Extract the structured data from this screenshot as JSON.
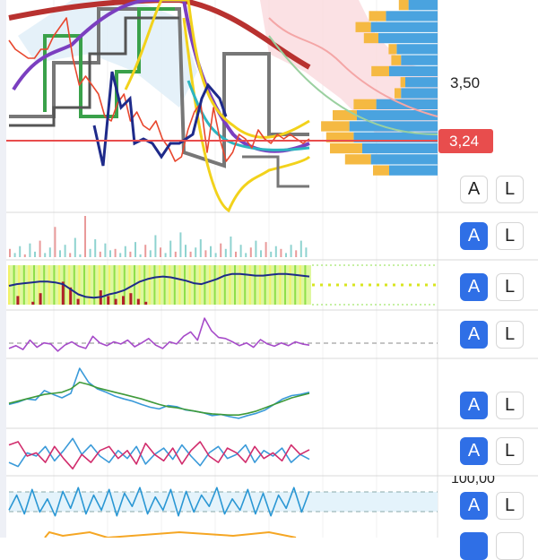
{
  "price_scale": {
    "level_label": "3,50",
    "current_price": "3,24",
    "current_color": "#e84d4d",
    "clipped_label": "100,00"
  },
  "panel_buttons": [
    {
      "a": "A",
      "l": "L",
      "a_active": false
    },
    {
      "a": "A",
      "l": "L",
      "a_active": true
    },
    {
      "a": "A",
      "l": "L",
      "a_active": true
    },
    {
      "a": "A",
      "l": "L",
      "a_active": true
    },
    {
      "a": "A",
      "l": "L",
      "a_active": true
    },
    {
      "a": "A",
      "l": "L",
      "a_active": true
    },
    {
      "a": "A",
      "l": "L",
      "a_active": true
    }
  ],
  "chart_data": {
    "type": "line",
    "title": "",
    "main_price_panel": {
      "price_scale_labels": [
        "3,50",
        "3,24"
      ],
      "current_price": 3.24,
      "price_line_series": [
        [
          3.46,
          3.44,
          3.43,
          3.42,
          3.42,
          3.44,
          3.44,
          3.47,
          3.49,
          3.51,
          3.42,
          3.36,
          3.38,
          3.36,
          3.34,
          3.29,
          3.28,
          3.32,
          3.34,
          3.28,
          3.3,
          3.27,
          3.26,
          3.28,
          3.24,
          3.22,
          3.19,
          3.2,
          3.26,
          3.3,
          3.32,
          3.21,
          3.31,
          3.24,
          3.19,
          3.21,
          3.25,
          3.24,
          3.22,
          3.26,
          3.24,
          3.23,
          3.25,
          3.24,
          3.25,
          3.24,
          3.23,
          3.24
        ]
      ],
      "volume_profile_bins": [
        {
          "blue": 0.27,
          "orange": 0.12
        },
        {
          "blue": 0.48,
          "orange": 0.21
        },
        {
          "blue": 0.62,
          "orange": 0.19
        },
        {
          "blue": 0.55,
          "orange": 0.18
        },
        {
          "blue": 0.38,
          "orange": 0.1
        },
        {
          "blue": 0.34,
          "orange": 0.12
        },
        {
          "blue": 0.45,
          "orange": 0.22
        },
        {
          "blue": 0.3,
          "orange": 0.06
        },
        {
          "blue": 0.34,
          "orange": 0.08
        },
        {
          "blue": 0.57,
          "orange": 0.28
        },
        {
          "blue": 0.75,
          "orange": 0.3
        },
        {
          "blue": 0.82,
          "orange": 0.35
        },
        {
          "blue": 0.78,
          "orange": 0.34
        },
        {
          "blue": 0.7,
          "orange": 0.4
        },
        {
          "blue": 0.62,
          "orange": 0.32
        },
        {
          "blue": 0.45,
          "orange": 0.2
        }
      ]
    },
    "volume_panel": {
      "values": [
        6,
        3,
        8,
        2,
        10,
        4,
        12,
        3,
        7,
        22,
        5,
        9,
        3,
        14,
        2,
        30,
        6,
        13,
        4,
        10,
        5,
        6,
        3,
        8,
        4,
        11,
        2,
        9,
        5,
        16,
        7,
        3,
        12,
        4,
        18,
        9,
        4,
        7,
        13,
        5,
        8,
        3,
        10,
        6,
        15,
        4,
        9,
        3,
        7,
        12,
        5,
        11,
        4,
        8,
        6,
        3,
        9,
        5,
        12,
        7
      ]
    },
    "trend_panel": {
      "navy_line": [
        0.5,
        0.52,
        0.53,
        0.54,
        0.55,
        0.55,
        0.54,
        0.52,
        0.46,
        0.4,
        0.37,
        0.36,
        0.37,
        0.4,
        0.42,
        0.45,
        0.5,
        0.55,
        0.58,
        0.6,
        0.61,
        0.6,
        0.58,
        0.56,
        0.53,
        0.52,
        0.55,
        0.58,
        0.62,
        0.64,
        0.64,
        0.63,
        0.62,
        0.62,
        0.63,
        0.64,
        0.64,
        0.63,
        0.62,
        0.61
      ],
      "red_bars": [
        0,
        0.3,
        0,
        0.1,
        0.4,
        0,
        0,
        0.8,
        0.6,
        0.2,
        0,
        0,
        0.5,
        0.3,
        0.2,
        0.3,
        0.4,
        0.2,
        0.1,
        0,
        0,
        0,
        0,
        0,
        0,
        0,
        0,
        0,
        0,
        0,
        0,
        0,
        0,
        0,
        0,
        0,
        0,
        0,
        0,
        0
      ]
    },
    "oscillator_1": {
      "values": [
        0.4,
        0.45,
        0.38,
        0.55,
        0.42,
        0.5,
        0.48,
        0.35,
        0.46,
        0.52,
        0.44,
        0.4,
        0.62,
        0.5,
        0.45,
        0.52,
        0.48,
        0.55,
        0.43,
        0.5,
        0.58,
        0.46,
        0.4,
        0.52,
        0.48,
        0.62,
        0.7,
        0.55,
        0.95,
        0.72,
        0.6,
        0.58,
        0.52,
        0.45,
        0.5,
        0.42,
        0.56,
        0.48,
        0.44,
        0.5,
        0.45,
        0.52,
        0.48,
        0.46
      ]
    },
    "oscillator_2": {
      "series": [
        {
          "values": [
            0.3,
            0.34,
            0.4,
            0.38,
            0.55,
            0.48,
            0.42,
            0.5,
            0.95,
            0.7,
            0.58,
            0.52,
            0.45,
            0.4,
            0.36,
            0.3,
            0.25,
            0.22,
            0.28,
            0.26,
            0.2,
            0.18,
            0.15,
            0.1,
            0.12,
            0.08,
            0.05,
            0.1,
            0.14,
            0.2,
            0.3,
            0.4,
            0.46,
            0.48,
            0.52
          ]
        },
        {
          "values": [
            0.32,
            0.36,
            0.4,
            0.44,
            0.48,
            0.5,
            0.52,
            0.58,
            0.7,
            0.66,
            0.6,
            0.56,
            0.52,
            0.48,
            0.44,
            0.4,
            0.35,
            0.3,
            0.26,
            0.24,
            0.21,
            0.18,
            0.15,
            0.13,
            0.12,
            0.11,
            0.11,
            0.14,
            0.18,
            0.24,
            0.3,
            0.36,
            0.42,
            0.46,
            0.5
          ]
        }
      ]
    },
    "oscillator_3": {
      "series": [
        {
          "values": [
            0.4,
            0.35,
            0.52,
            0.48,
            0.6,
            0.42,
            0.55,
            0.7,
            0.5,
            0.62,
            0.48,
            0.4,
            0.55,
            0.45,
            0.6,
            0.38,
            0.5,
            0.58,
            0.44,
            0.62,
            0.48,
            0.36,
            0.52,
            0.6,
            0.45,
            0.5,
            0.62,
            0.4,
            0.55,
            0.48,
            0.58,
            0.4,
            0.5,
            0.44
          ]
        },
        {
          "values": [
            0.62,
            0.66,
            0.48,
            0.52,
            0.4,
            0.6,
            0.45,
            0.32,
            0.5,
            0.4,
            0.55,
            0.6,
            0.45,
            0.55,
            0.38,
            0.64,
            0.5,
            0.42,
            0.58,
            0.38,
            0.55,
            0.66,
            0.48,
            0.4,
            0.58,
            0.52,
            0.4,
            0.6,
            0.45,
            0.52,
            0.42,
            0.62,
            0.5,
            0.56
          ]
        }
      ]
    },
    "oscillator_4": {
      "values": [
        0.3,
        0.7,
        0.2,
        0.85,
        0.25,
        0.6,
        0.15,
        0.8,
        0.35,
        0.9,
        0.2,
        0.7,
        0.3,
        0.85,
        0.15,
        0.75,
        0.4,
        0.9,
        0.2,
        0.65,
        0.3,
        0.85,
        0.15,
        0.8,
        0.25,
        0.7,
        0.4,
        0.9,
        0.2,
        0.6,
        0.3,
        0.85,
        0.2,
        0.75,
        0.15,
        0.7,
        0.35,
        0.9,
        0.25,
        0.8
      ]
    }
  }
}
